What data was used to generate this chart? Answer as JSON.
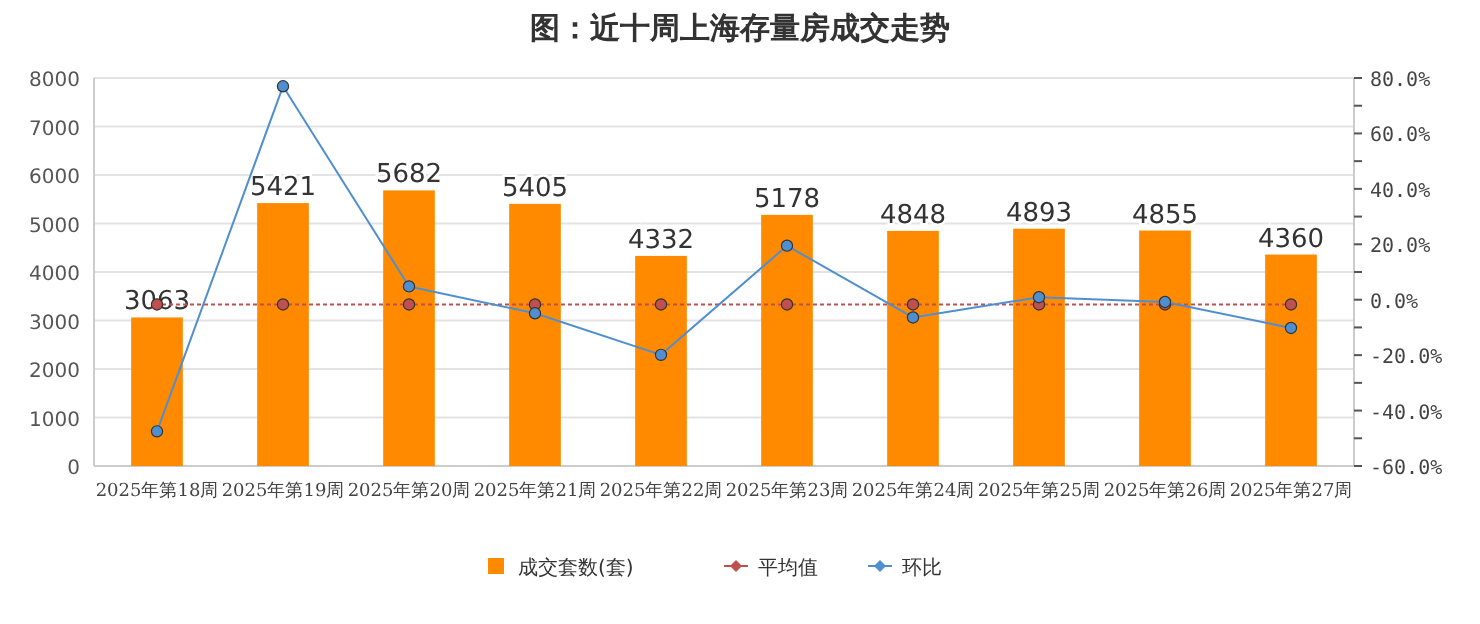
{
  "chart_data": {
    "type": "bar",
    "title": "图：近十周上海存量房成交走势",
    "categories": [
      "2025年第18周",
      "2025年第19周",
      "2025年第20周",
      "2025年第21周",
      "2025年第22周",
      "2025年第23周",
      "2025年第24周",
      "2025年第25周",
      "2025年第26周",
      "2025年第27周"
    ],
    "series": [
      {
        "name": "成交套数(套)",
        "color": "#ff8a00",
        "values": [
          3063,
          5421,
          5682,
          5405,
          4332,
          5178,
          4848,
          4893,
          4855,
          4360
        ],
        "value_labels": [
          "3063",
          "5421",
          "5682",
          "5405",
          "4332",
          "5178",
          "4848",
          "4893",
          "4855",
          "4360"
        ]
      },
      {
        "name": "平均值",
        "type": "line",
        "axis": "y2",
        "color": "#c0504d",
        "line_style": "dotted",
        "marker": "circle",
        "values": [
          -1.7,
          -1.7,
          -1.7,
          -1.7,
          -1.7,
          -1.7,
          -1.7,
          -1.7,
          -1.7,
          -1.7
        ]
      },
      {
        "name": "环比",
        "type": "line",
        "axis": "y2",
        "color": "#4f8fd0",
        "line_style": "solid",
        "marker": "circle",
        "values": [
          -47.5,
          77.0,
          4.8,
          -4.9,
          -19.9,
          19.5,
          -6.4,
          0.9,
          -0.8,
          -10.2
        ]
      }
    ],
    "ylim": [
      0,
      8000
    ],
    "yticks": [
      0,
      1000,
      2000,
      3000,
      4000,
      5000,
      6000,
      7000,
      8000
    ],
    "y2lim": [
      -60,
      80
    ],
    "y2ticks": [
      {
        "value": -60,
        "label": "-60.0%"
      },
      {
        "value": -50,
        "label": null
      },
      {
        "value": -40,
        "label": "-40.0%"
      },
      {
        "value": -30,
        "label": null
      },
      {
        "value": -20,
        "label": "-20.0%"
      },
      {
        "value": -10,
        "label": null
      },
      {
        "value": 0,
        "label": "0.0%"
      },
      {
        "value": 10,
        "label": null
      },
      {
        "value": 20,
        "label": "20.0%"
      },
      {
        "value": 30,
        "label": null
      },
      {
        "value": 40,
        "label": "40.0%"
      },
      {
        "value": 50,
        "label": null
      },
      {
        "value": 60,
        "label": "60.0%"
      },
      {
        "value": 70,
        "label": null
      },
      {
        "value": 80,
        "label": "80.0%"
      }
    ],
    "grid": "y",
    "legend": "bottom"
  }
}
